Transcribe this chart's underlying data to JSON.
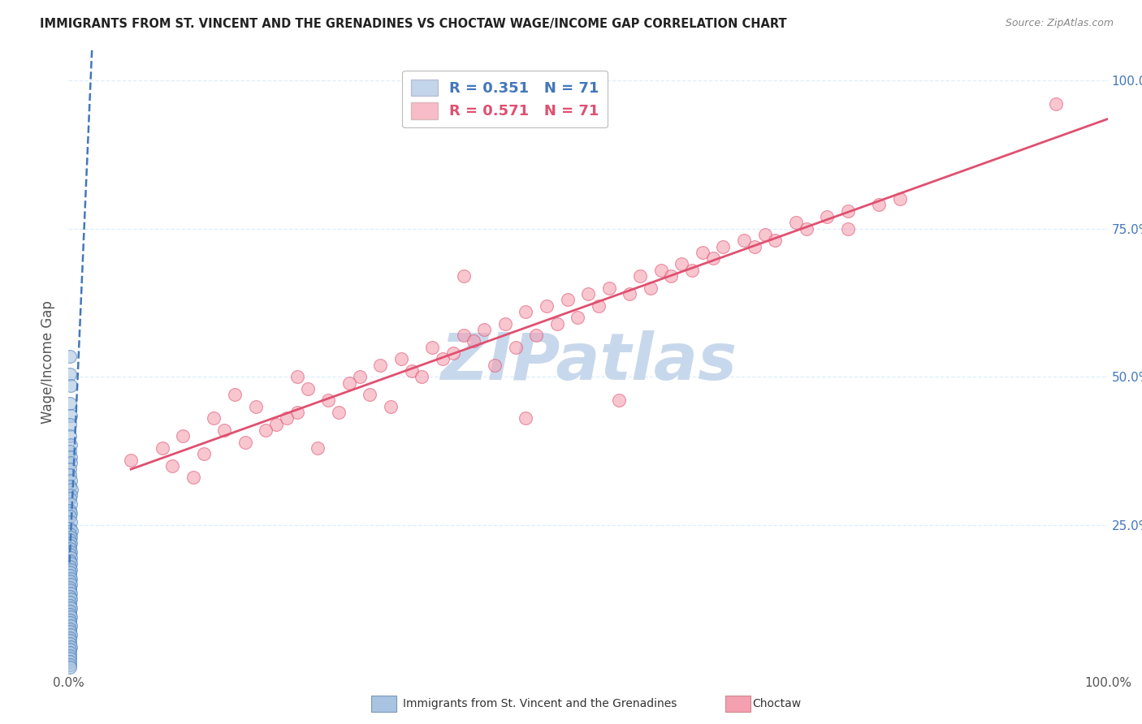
{
  "title": "IMMIGRANTS FROM ST. VINCENT AND THE GRENADINES VS CHOCTAW WAGE/INCOME GAP CORRELATION CHART",
  "source": "Source: ZipAtlas.com",
  "ylabel": "Wage/Income Gap",
  "blue_R": 0.351,
  "blue_N": 71,
  "pink_R": 0.571,
  "pink_N": 71,
  "blue_color": "#A8C4E0",
  "pink_color": "#F4A0B0",
  "trendline_blue_color": "#4477BB",
  "trendline_pink_color": "#E05070",
  "watermark_color": "#C8D8EC",
  "ytick_color": "#4477BB",
  "blue_points_x": [
    0.001,
    0.001,
    0.002,
    0.001,
    0.002,
    0.001,
    0.001,
    0.002,
    0.001,
    0.002,
    0.002,
    0.001,
    0.001,
    0.002,
    0.001,
    0.003,
    0.002,
    0.001,
    0.002,
    0.001,
    0.002,
    0.001,
    0.002,
    0.001,
    0.003,
    0.001,
    0.002,
    0.001,
    0.002,
    0.001,
    0.001,
    0.002,
    0.001,
    0.002,
    0.001,
    0.002,
    0.001,
    0.002,
    0.001,
    0.001,
    0.002,
    0.001,
    0.002,
    0.001,
    0.001,
    0.002,
    0.001,
    0.002,
    0.001,
    0.001,
    0.002,
    0.001,
    0.001,
    0.002,
    0.001,
    0.001,
    0.002,
    0.001,
    0.001,
    0.002,
    0.001,
    0.001,
    0.001,
    0.002,
    0.001,
    0.001,
    0.001,
    0.001,
    0.001,
    0.001,
    0.001
  ],
  "blue_points_y": [
    0.535,
    0.505,
    0.485,
    0.455,
    0.435,
    0.42,
    0.4,
    0.385,
    0.375,
    0.365,
    0.355,
    0.345,
    0.335,
    0.325,
    0.315,
    0.31,
    0.3,
    0.295,
    0.285,
    0.275,
    0.27,
    0.265,
    0.255,
    0.245,
    0.24,
    0.235,
    0.23,
    0.225,
    0.22,
    0.215,
    0.21,
    0.205,
    0.2,
    0.195,
    0.19,
    0.185,
    0.18,
    0.175,
    0.17,
    0.165,
    0.16,
    0.155,
    0.15,
    0.145,
    0.14,
    0.135,
    0.13,
    0.125,
    0.12,
    0.115,
    0.11,
    0.105,
    0.1,
    0.095,
    0.09,
    0.085,
    0.08,
    0.075,
    0.07,
    0.065,
    0.06,
    0.055,
    0.05,
    0.045,
    0.04,
    0.035,
    0.03,
    0.025,
    0.02,
    0.015,
    0.01
  ],
  "pink_points_x": [
    0.06,
    0.09,
    0.11,
    0.13,
    0.1,
    0.15,
    0.17,
    0.14,
    0.2,
    0.18,
    0.12,
    0.22,
    0.16,
    0.25,
    0.19,
    0.23,
    0.28,
    0.21,
    0.3,
    0.27,
    0.24,
    0.32,
    0.26,
    0.35,
    0.29,
    0.33,
    0.38,
    0.31,
    0.4,
    0.36,
    0.42,
    0.34,
    0.44,
    0.37,
    0.46,
    0.39,
    0.48,
    0.41,
    0.5,
    0.43,
    0.52,
    0.45,
    0.55,
    0.47,
    0.57,
    0.49,
    0.59,
    0.51,
    0.61,
    0.54,
    0.63,
    0.56,
    0.65,
    0.58,
    0.67,
    0.6,
    0.7,
    0.62,
    0.73,
    0.66,
    0.75,
    0.68,
    0.78,
    0.71,
    0.8,
    0.22,
    0.38,
    0.44,
    0.53,
    0.75,
    0.95
  ],
  "pink_points_y": [
    0.36,
    0.38,
    0.4,
    0.37,
    0.35,
    0.41,
    0.39,
    0.43,
    0.42,
    0.45,
    0.33,
    0.44,
    0.47,
    0.46,
    0.41,
    0.48,
    0.5,
    0.43,
    0.52,
    0.49,
    0.38,
    0.53,
    0.44,
    0.55,
    0.47,
    0.51,
    0.57,
    0.45,
    0.58,
    0.53,
    0.59,
    0.5,
    0.61,
    0.54,
    0.62,
    0.56,
    0.63,
    0.52,
    0.64,
    0.55,
    0.65,
    0.57,
    0.67,
    0.59,
    0.68,
    0.6,
    0.69,
    0.62,
    0.71,
    0.64,
    0.72,
    0.65,
    0.73,
    0.67,
    0.74,
    0.68,
    0.76,
    0.7,
    0.77,
    0.72,
    0.78,
    0.73,
    0.79,
    0.75,
    0.8,
    0.5,
    0.67,
    0.43,
    0.46,
    0.75,
    0.96
  ],
  "xlim": [
    0.0,
    1.0
  ],
  "ylim": [
    0.0,
    1.05
  ]
}
